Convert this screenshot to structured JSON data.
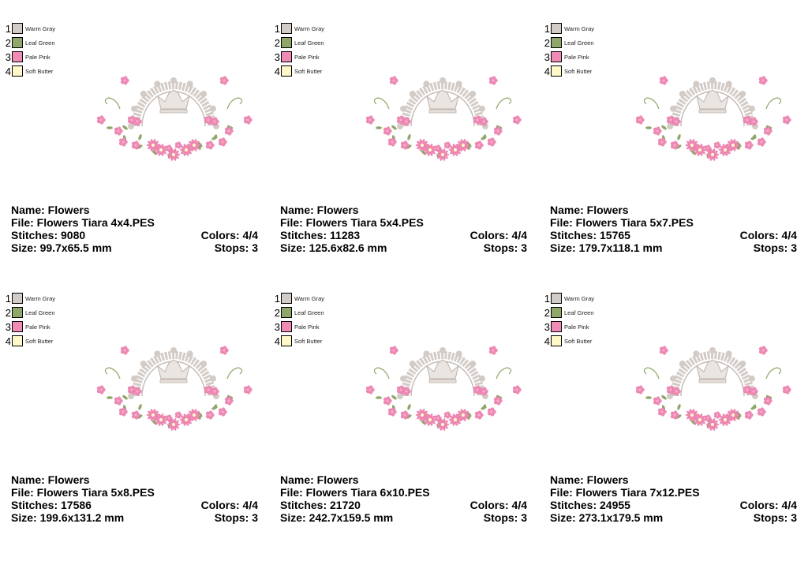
{
  "thread_colors": [
    {
      "num": "1",
      "name": "Warm Gray",
      "hex": "#d3cbc6"
    },
    {
      "num": "2",
      "name": "Leaf Green",
      "hex": "#8fa86a"
    },
    {
      "num": "3",
      "name": "Pale Pink",
      "hex": "#f08bb6"
    },
    {
      "num": "4",
      "name": "Soft Butter",
      "hex": "#fff9c9"
    }
  ],
  "designs": [
    {
      "name": "Name: Flowers",
      "file": "File: Flowers Tiara 4x4.PES",
      "stitches": "Stitches: 9080",
      "colors": "Colors: 4/4",
      "size": "Size: 99.7x65.5 mm",
      "stops": "Stops: 3"
    },
    {
      "name": "Name: Flowers",
      "file": "File: Flowers Tiara 5x4.PES",
      "stitches": "Stitches: 11283",
      "colors": "Colors: 4/4",
      "size": "Size: 125.6x82.6 mm",
      "stops": "Stops: 3"
    },
    {
      "name": "Name: Flowers",
      "file": "File: Flowers Tiara 5x7.PES",
      "stitches": "Stitches: 15765",
      "colors": "Colors: 4/4",
      "size": "Size: 179.7x118.1 mm",
      "stops": "Stops: 3"
    },
    {
      "name": "Name: Flowers",
      "file": "File: Flowers Tiara 5x8.PES",
      "stitches": "Stitches: 17586",
      "colors": "Colors: 4/4",
      "size": "Size: 199.6x131.2 mm",
      "stops": "Stops: 3"
    },
    {
      "name": "Name: Flowers",
      "file": "File: Flowers Tiara 6x10.PES",
      "stitches": "Stitches: 21720",
      "colors": "Colors: 4/4",
      "size": "Size: 242.7x159.5 mm",
      "stops": "Stops: 3"
    },
    {
      "name": "Name: Flowers",
      "file": "File: Flowers Tiara 7x12.PES",
      "stitches": "Stitches: 24955",
      "colors": "Colors: 4/4",
      "size": "Size: 273.1x179.5 mm",
      "stops": "Stops: 3"
    }
  ]
}
